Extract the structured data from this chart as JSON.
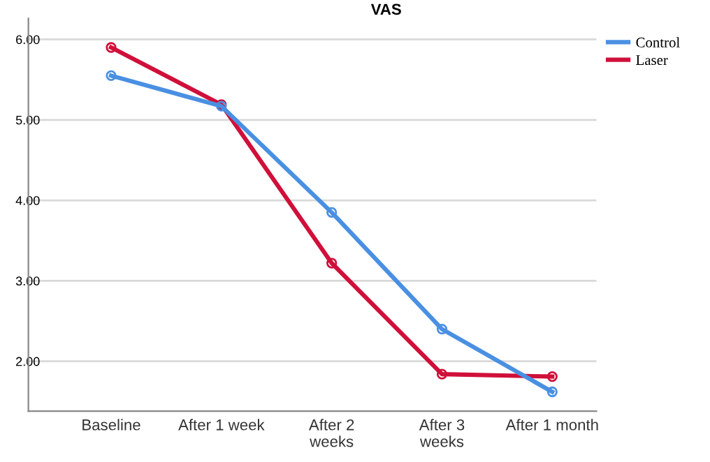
{
  "chart_data": {
    "type": "line",
    "title": "VAS",
    "categories": [
      "Baseline",
      "After 1 week",
      "After 2\nweeks",
      "After 3\nweeks",
      "After 1 month"
    ],
    "series": [
      {
        "name": "Control",
        "color": "#4a90e2",
        "values": [
          5.55,
          5.17,
          3.85,
          2.4,
          1.62
        ]
      },
      {
        "name": "Laser",
        "color": "#d0103a",
        "values": [
          5.9,
          5.19,
          3.22,
          1.84,
          1.81
        ]
      }
    ],
    "ylim": [
      1.38,
      6.26
    ],
    "yticks": [
      {
        "value": 2,
        "label": "2.00"
      },
      {
        "value": 3,
        "label": "3.00"
      },
      {
        "value": 4,
        "label": "4.00"
      },
      {
        "value": 5,
        "label": "5.00"
      },
      {
        "value": 6,
        "label": "6.00"
      }
    ],
    "grid": "y",
    "legend": "top right",
    "marker": "circle",
    "line_style": "solid"
  }
}
